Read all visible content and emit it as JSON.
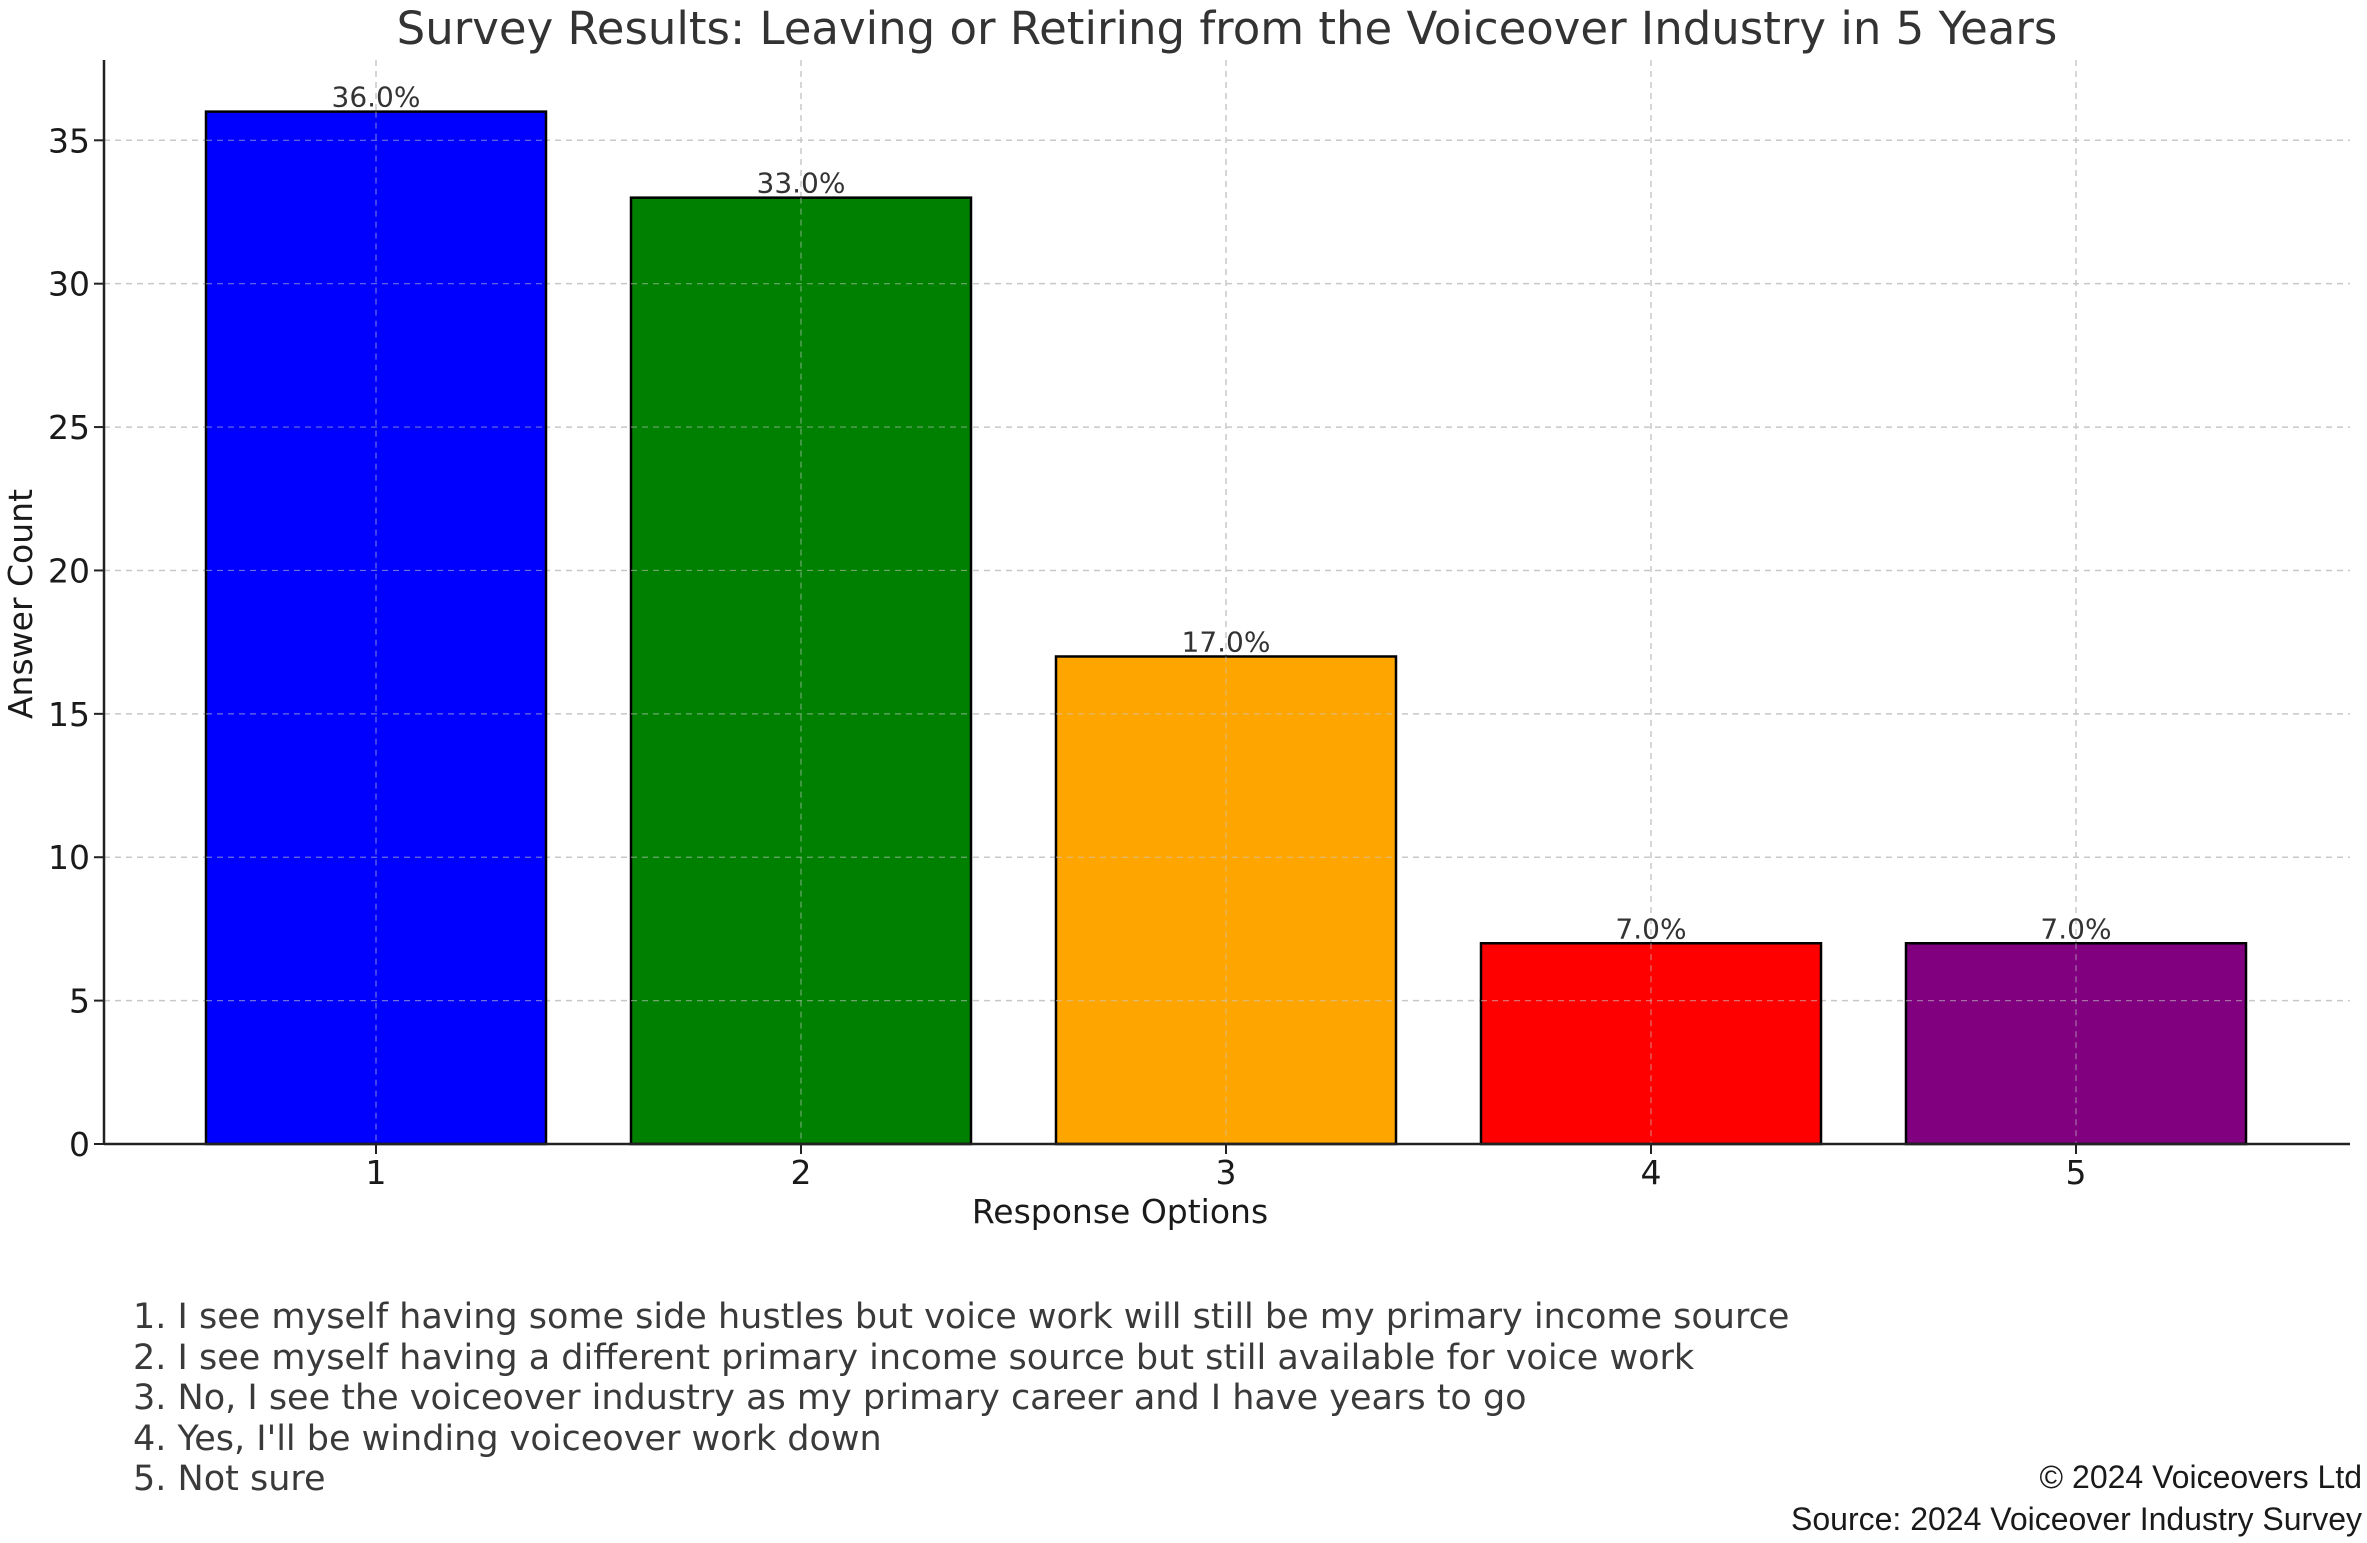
{
  "chart_data": {
    "type": "bar",
    "title": "Survey Results: Leaving or Retiring from the Voiceover Industry in 5 Years",
    "xlabel": "Response Options",
    "ylabel": "Answer Count",
    "categories": [
      "1",
      "2",
      "3",
      "4",
      "5"
    ],
    "values": [
      36,
      33,
      17,
      7,
      7
    ],
    "data_labels": [
      "36.0%",
      "33.0%",
      "17.0%",
      "7.0%",
      "7.0%"
    ],
    "colors": [
      "#0000ff",
      "#008000",
      "#ffa500",
      "#ff0000",
      "#800080"
    ],
    "ylim": [
      0,
      37.8
    ],
    "yticks": [
      0,
      5,
      10,
      15,
      20,
      25,
      30,
      35
    ],
    "grid": true,
    "legend_position": "bottom-left"
  },
  "legend_items": [
    "1. I see myself having some side hustles but voice work will still be my primary income source",
    "2. I see myself having a different primary income source but still available for voice work",
    "3. No, I see the voiceover industry as my primary career and I have years to go",
    "4. Yes, I'll be winding voiceover work down",
    "5. Not sure"
  ],
  "footer": {
    "copyright": "© 2024 Voiceovers Ltd",
    "source": "Source: 2024 Voiceover Industry Survey"
  }
}
